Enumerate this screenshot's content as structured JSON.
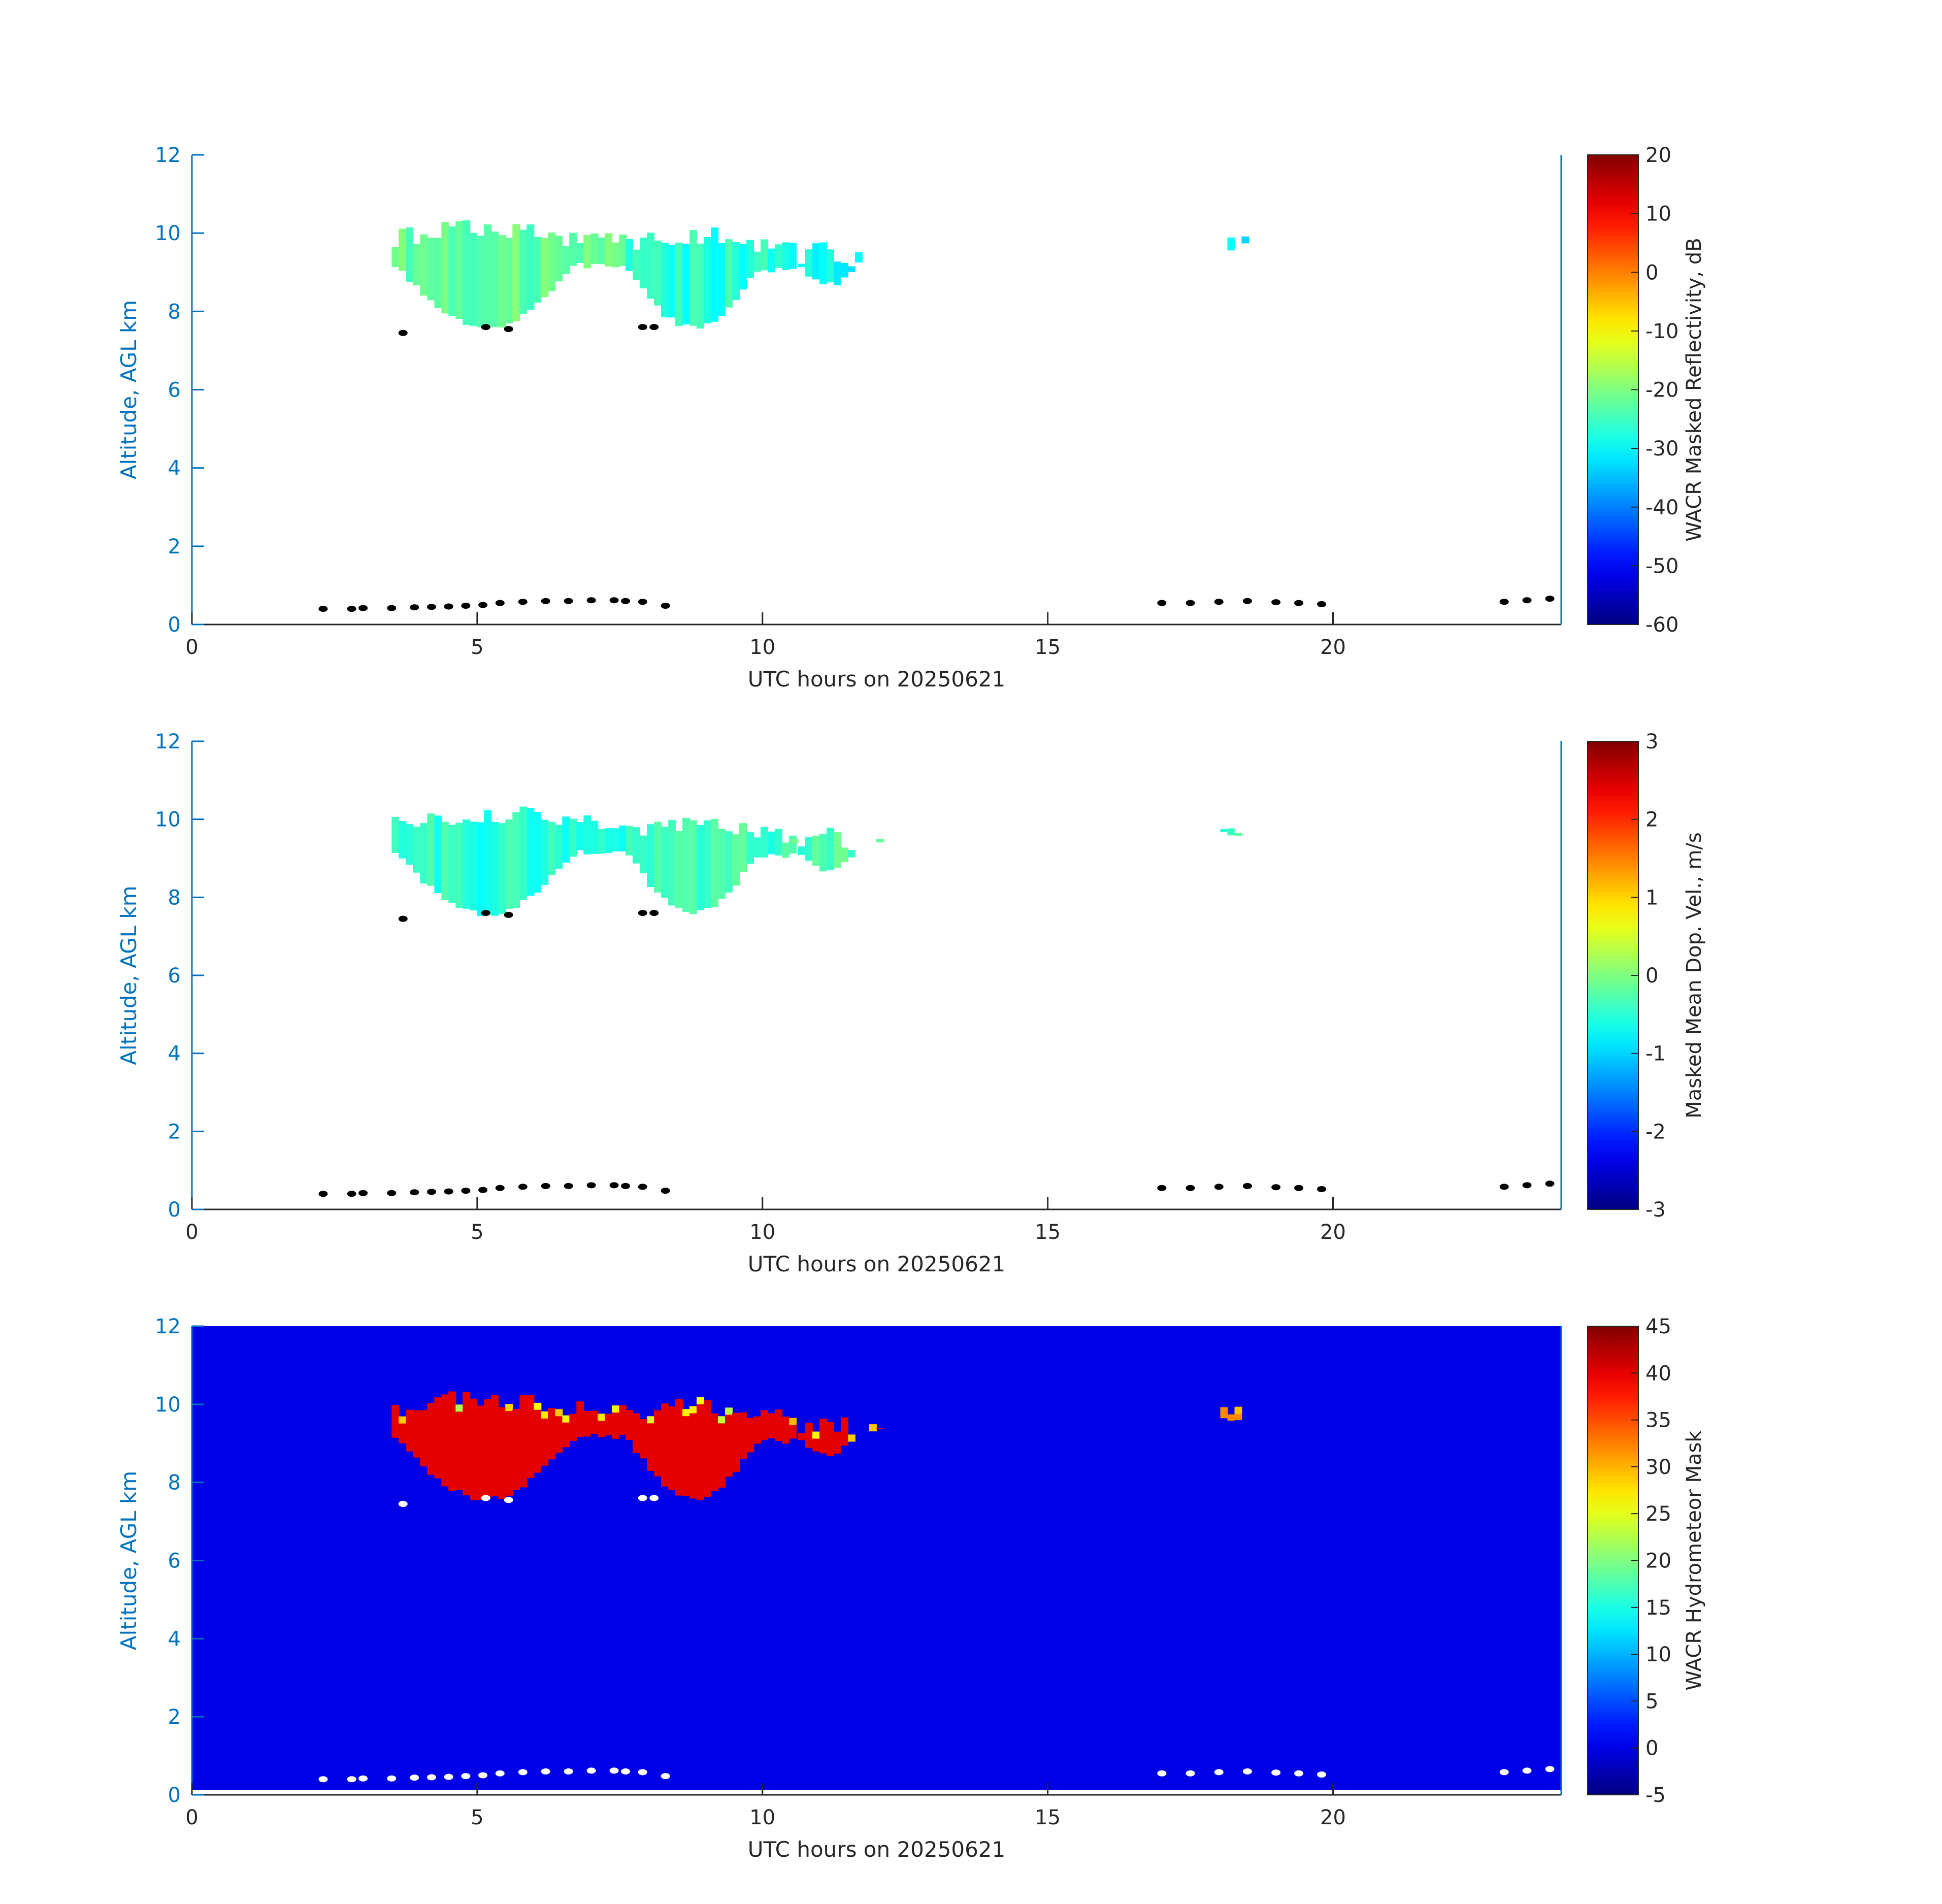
{
  "figure": {
    "colors": {
      "axis_left": "#0072BD",
      "axis_dark": "#262626",
      "mask_background": "#0000E6",
      "cloud_dots_top": "#000000",
      "cloud_dots_bottom": "#FFFFFF"
    }
  },
  "chart_data": [
    {
      "type": "heatmap",
      "title": "",
      "xlabel": "UTC hours on 20250621",
      "ylabel": "Altitude, AGL km",
      "xlim": [
        0,
        24
      ],
      "ylim": [
        0,
        12
      ],
      "xticks": [
        0,
        5,
        10,
        15,
        20
      ],
      "yticks": [
        0,
        2,
        4,
        6,
        8,
        10,
        12
      ],
      "colormap": "jet",
      "colorbar": {
        "label": "WACR Masked Reflectivity, dB",
        "limits": [
          -60,
          20
        ],
        "ticks": [
          20,
          10,
          0,
          -10,
          -20,
          -30,
          -40,
          -50,
          -60
        ]
      },
      "background": "white",
      "cloud_fields": [
        {
          "x_range": [
            3.5,
            7.6
          ],
          "base_km": 7.5,
          "top_km": 10.4,
          "value": -22
        },
        {
          "x_range": [
            7.6,
            10.5
          ],
          "base_km": 7.5,
          "top_km": 10.2,
          "value": -27
        },
        {
          "x_range": [
            10.5,
            12.0
          ],
          "base_km": 8.6,
          "top_km": 9.8,
          "value": -30
        },
        {
          "x_range": [
            17.9,
            18.7
          ],
          "base_km": 9.5,
          "top_km": 10.1,
          "value": -30
        }
      ],
      "ceilometer_cloud_base_points": [
        [
          2.3,
          0.4
        ],
        [
          2.8,
          0.4
        ],
        [
          3.0,
          0.42
        ],
        [
          3.5,
          0.42
        ],
        [
          3.9,
          0.44
        ],
        [
          4.2,
          0.45
        ],
        [
          4.5,
          0.46
        ],
        [
          4.8,
          0.48
        ],
        [
          5.1,
          0.5
        ],
        [
          5.4,
          0.55
        ],
        [
          5.8,
          0.58
        ],
        [
          6.2,
          0.6
        ],
        [
          6.6,
          0.6
        ],
        [
          7.0,
          0.62
        ],
        [
          7.4,
          0.62
        ],
        [
          7.6,
          0.6
        ],
        [
          7.9,
          0.58
        ],
        [
          8.3,
          0.48
        ],
        [
          3.7,
          7.45
        ],
        [
          5.15,
          7.6
        ],
        [
          5.55,
          7.55
        ],
        [
          7.9,
          7.6
        ],
        [
          8.1,
          7.6
        ],
        [
          17.0,
          0.55
        ],
        [
          17.5,
          0.55
        ],
        [
          18.0,
          0.58
        ],
        [
          18.5,
          0.6
        ],
        [
          19.0,
          0.57
        ],
        [
          19.4,
          0.55
        ],
        [
          19.8,
          0.52
        ],
        [
          23.0,
          0.58
        ],
        [
          23.4,
          0.62
        ],
        [
          23.8,
          0.66
        ]
      ]
    },
    {
      "type": "heatmap",
      "title": "",
      "xlabel": "UTC hours on 20250621",
      "ylabel": "Altitude, AGL km",
      "xlim": [
        0,
        24
      ],
      "ylim": [
        0,
        12
      ],
      "xticks": [
        0,
        5,
        10,
        15,
        20
      ],
      "yticks": [
        0,
        2,
        4,
        6,
        8,
        10,
        12
      ],
      "colormap": "jet",
      "colorbar": {
        "label": "Masked Mean Dop. Vel., m/s",
        "limits": [
          -3,
          3
        ],
        "ticks": [
          3,
          2,
          1,
          0,
          -1,
          -2,
          -3
        ]
      },
      "background": "white",
      "cloud_fields": [
        {
          "x_range": [
            3.5,
            7.6
          ],
          "base_km": 7.5,
          "top_km": 10.4,
          "value": -0.5
        },
        {
          "x_range": [
            7.6,
            10.5
          ],
          "base_km": 7.5,
          "top_km": 10.2,
          "value": -0.4
        },
        {
          "x_range": [
            10.5,
            12.0
          ],
          "base_km": 8.6,
          "top_km": 9.8,
          "value": -0.3
        },
        {
          "x_range": [
            17.9,
            18.7
          ],
          "base_km": 9.5,
          "top_km": 10.1,
          "value": -0.3
        }
      ],
      "ceilometer_cloud_base_points": [
        [
          2.3,
          0.4
        ],
        [
          2.8,
          0.4
        ],
        [
          3.0,
          0.42
        ],
        [
          3.5,
          0.42
        ],
        [
          3.9,
          0.44
        ],
        [
          4.2,
          0.45
        ],
        [
          4.5,
          0.46
        ],
        [
          4.8,
          0.48
        ],
        [
          5.1,
          0.5
        ],
        [
          5.4,
          0.55
        ],
        [
          5.8,
          0.58
        ],
        [
          6.2,
          0.6
        ],
        [
          6.6,
          0.6
        ],
        [
          7.0,
          0.62
        ],
        [
          7.4,
          0.62
        ],
        [
          7.6,
          0.6
        ],
        [
          7.9,
          0.58
        ],
        [
          8.3,
          0.48
        ],
        [
          3.7,
          7.45
        ],
        [
          5.15,
          7.6
        ],
        [
          5.55,
          7.55
        ],
        [
          7.9,
          7.6
        ],
        [
          8.1,
          7.6
        ],
        [
          17.0,
          0.55
        ],
        [
          17.5,
          0.55
        ],
        [
          18.0,
          0.58
        ],
        [
          18.5,
          0.6
        ],
        [
          19.0,
          0.57
        ],
        [
          19.4,
          0.55
        ],
        [
          19.8,
          0.52
        ],
        [
          23.0,
          0.58
        ],
        [
          23.4,
          0.62
        ],
        [
          23.8,
          0.66
        ]
      ]
    },
    {
      "type": "heatmap",
      "title": "",
      "xlabel": "UTC hours on 20250621",
      "ylabel": "Altitude, AGL km",
      "xlim": [
        0,
        24
      ],
      "ylim": [
        0,
        12
      ],
      "xticks": [
        0,
        5,
        10,
        15,
        20
      ],
      "yticks": [
        0,
        2,
        4,
        6,
        8,
        10,
        12
      ],
      "colormap": "jet",
      "colorbar": {
        "label": "WACR Hydrometeor Mask",
        "limits": [
          -5,
          45
        ],
        "ticks": [
          45,
          40,
          35,
          30,
          25,
          20,
          15,
          10,
          5,
          0,
          -5
        ]
      },
      "background_value": 0,
      "cloud_fields": [
        {
          "x_range": [
            3.5,
            7.6
          ],
          "base_km": 7.5,
          "top_km": 10.4,
          "value": 40
        },
        {
          "x_range": [
            7.6,
            10.5
          ],
          "base_km": 7.5,
          "top_km": 10.2,
          "value": 40
        },
        {
          "x_range": [
            10.5,
            12.0
          ],
          "base_km": 8.6,
          "top_km": 9.8,
          "value": 40
        },
        {
          "x_range": [
            17.9,
            18.7
          ],
          "base_km": 9.5,
          "top_km": 10.1,
          "value": 32
        }
      ],
      "ceilometer_cloud_base_points": [
        [
          2.3,
          0.4
        ],
        [
          2.8,
          0.4
        ],
        [
          3.0,
          0.42
        ],
        [
          3.5,
          0.42
        ],
        [
          3.9,
          0.44
        ],
        [
          4.2,
          0.45
        ],
        [
          4.5,
          0.46
        ],
        [
          4.8,
          0.48
        ],
        [
          5.1,
          0.5
        ],
        [
          5.4,
          0.55
        ],
        [
          5.8,
          0.58
        ],
        [
          6.2,
          0.6
        ],
        [
          6.6,
          0.6
        ],
        [
          7.0,
          0.62
        ],
        [
          7.4,
          0.62
        ],
        [
          7.6,
          0.6
        ],
        [
          7.9,
          0.58
        ],
        [
          8.3,
          0.48
        ],
        [
          3.7,
          7.45
        ],
        [
          5.15,
          7.6
        ],
        [
          5.55,
          7.55
        ],
        [
          7.9,
          7.6
        ],
        [
          8.1,
          7.6
        ],
        [
          17.0,
          0.55
        ],
        [
          17.5,
          0.55
        ],
        [
          18.0,
          0.58
        ],
        [
          18.5,
          0.6
        ],
        [
          19.0,
          0.57
        ],
        [
          19.4,
          0.55
        ],
        [
          19.8,
          0.52
        ],
        [
          23.0,
          0.58
        ],
        [
          23.4,
          0.62
        ],
        [
          23.8,
          0.66
        ]
      ]
    }
  ]
}
